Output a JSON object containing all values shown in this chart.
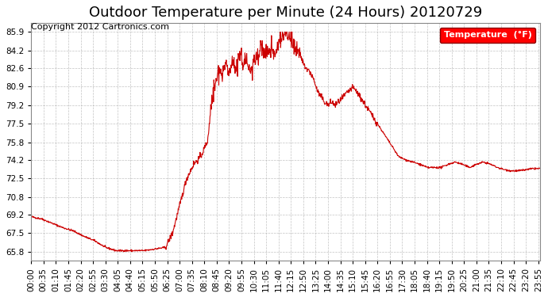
{
  "title": "Outdoor Temperature per Minute (24 Hours) 20120729",
  "copyright_text": "Copyright 2012 Cartronics.com",
  "legend_label": "Temperature  (°F)",
  "line_color": "#cc0000",
  "background_color": "#ffffff",
  "plot_bg_color": "#ffffff",
  "grid_color": "#aaaaaa",
  "yticks": [
    65.8,
    67.5,
    69.2,
    70.8,
    72.5,
    74.2,
    75.8,
    77.5,
    79.2,
    80.9,
    82.6,
    84.2,
    85.9
  ],
  "ylim": [
    65.0,
    86.7
  ],
  "total_minutes": 1440,
  "xtick_interval": 35,
  "title_fontsize": 13,
  "axis_fontsize": 7.5,
  "copyright_fontsize": 8,
  "control_points": [
    [
      0,
      69.0
    ],
    [
      30,
      68.8
    ],
    [
      60,
      68.4
    ],
    [
      90,
      68.0
    ],
    [
      120,
      67.7
    ],
    [
      150,
      67.2
    ],
    [
      180,
      66.8
    ],
    [
      210,
      66.2
    ],
    [
      240,
      65.9
    ],
    [
      260,
      65.9
    ],
    [
      280,
      65.9
    ],
    [
      300,
      65.9
    ],
    [
      320,
      65.9
    ],
    [
      340,
      66.0
    ],
    [
      360,
      66.1
    ],
    [
      380,
      66.2
    ],
    [
      400,
      67.5
    ],
    [
      420,
      70.0
    ],
    [
      440,
      72.5
    ],
    [
      460,
      73.8
    ],
    [
      480,
      74.5
    ],
    [
      500,
      76.0
    ],
    [
      510,
      79.5
    ],
    [
      520,
      80.8
    ],
    [
      530,
      82.5
    ],
    [
      540,
      82.0
    ],
    [
      550,
      82.8
    ],
    [
      560,
      82.2
    ],
    [
      570,
      83.5
    ],
    [
      580,
      82.5
    ],
    [
      590,
      83.8
    ],
    [
      600,
      83.0
    ],
    [
      610,
      83.5
    ],
    [
      620,
      82.0
    ],
    [
      630,
      83.0
    ],
    [
      640,
      83.8
    ],
    [
      650,
      84.5
    ],
    [
      660,
      84.0
    ],
    [
      670,
      84.2
    ],
    [
      680,
      84.5
    ],
    [
      690,
      83.5
    ],
    [
      700,
      85.0
    ],
    [
      710,
      85.5
    ],
    [
      720,
      85.9
    ],
    [
      730,
      85.5
    ],
    [
      740,
      84.8
    ],
    [
      750,
      84.5
    ],
    [
      760,
      83.8
    ],
    [
      770,
      83.0
    ],
    [
      780,
      82.5
    ],
    [
      790,
      82.2
    ],
    [
      800,
      81.5
    ],
    [
      810,
      80.5
    ],
    [
      820,
      80.0
    ],
    [
      830,
      79.5
    ],
    [
      840,
      79.2
    ],
    [
      850,
      79.5
    ],
    [
      860,
      79.2
    ],
    [
      870,
      79.5
    ],
    [
      880,
      79.8
    ],
    [
      890,
      80.2
    ],
    [
      900,
      80.5
    ],
    [
      910,
      80.8
    ],
    [
      920,
      80.5
    ],
    [
      930,
      80.0
    ],
    [
      940,
      79.5
    ],
    [
      950,
      79.0
    ],
    [
      960,
      78.5
    ],
    [
      970,
      78.0
    ],
    [
      980,
      77.5
    ],
    [
      990,
      77.0
    ],
    [
      1000,
      76.5
    ],
    [
      1010,
      76.0
    ],
    [
      1020,
      75.5
    ],
    [
      1030,
      75.0
    ],
    [
      1040,
      74.5
    ],
    [
      1060,
      74.2
    ],
    [
      1080,
      74.0
    ],
    [
      1100,
      73.8
    ],
    [
      1120,
      73.5
    ],
    [
      1140,
      73.5
    ],
    [
      1160,
      73.5
    ],
    [
      1180,
      73.8
    ],
    [
      1200,
      74.0
    ],
    [
      1220,
      73.8
    ],
    [
      1240,
      73.5
    ],
    [
      1260,
      73.8
    ],
    [
      1280,
      74.0
    ],
    [
      1300,
      73.8
    ],
    [
      1320,
      73.5
    ],
    [
      1340,
      73.3
    ],
    [
      1360,
      73.2
    ],
    [
      1380,
      73.2
    ],
    [
      1400,
      73.3
    ],
    [
      1420,
      73.4
    ],
    [
      1439,
      73.4
    ]
  ]
}
